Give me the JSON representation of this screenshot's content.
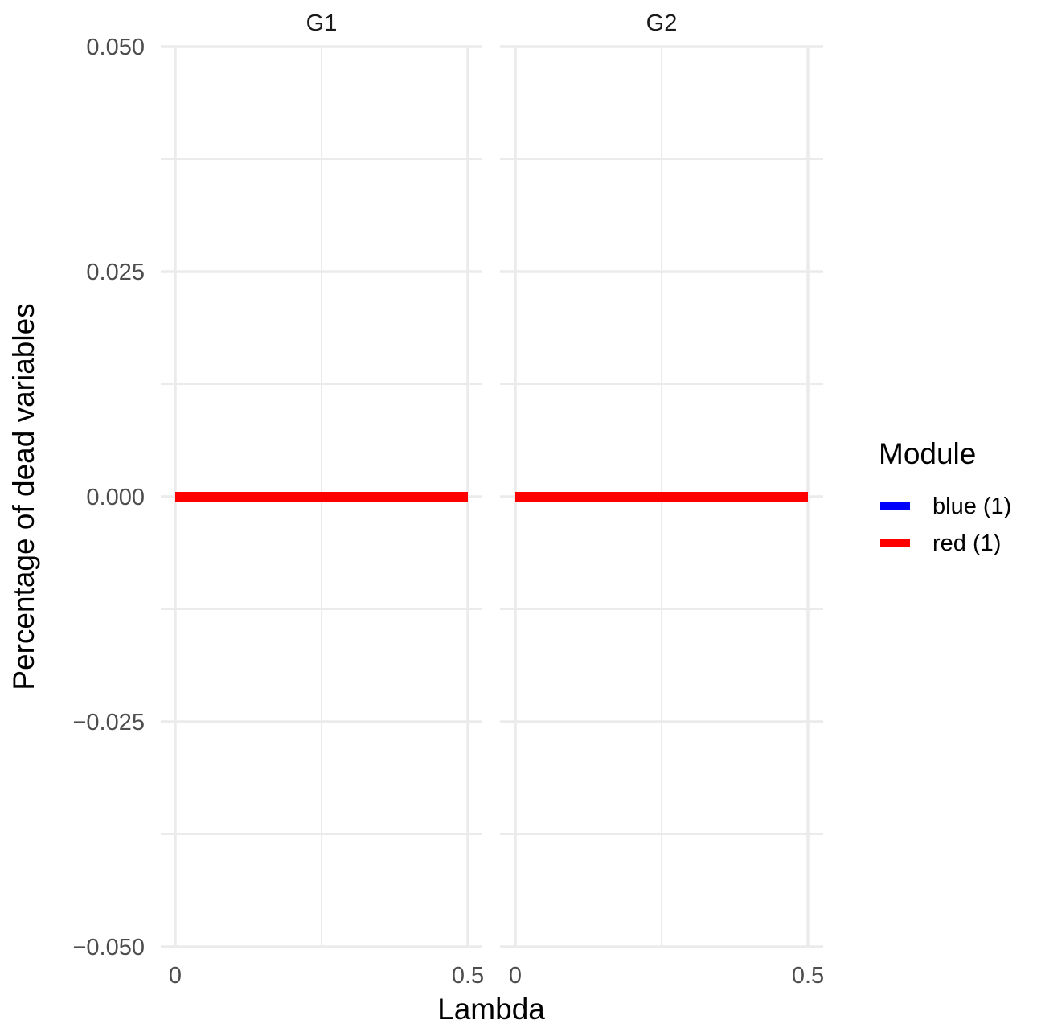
{
  "chart_data": {
    "type": "line",
    "facets": [
      "G1",
      "G2"
    ],
    "xlabel": "Lambda",
    "ylabel": "Percentage of dead variables",
    "xlim": [
      0,
      0.5
    ],
    "ylim": [
      -0.05,
      0.05
    ],
    "x_ticks": [
      0,
      0.5
    ],
    "x_tick_labels": [
      "0",
      "0.5"
    ],
    "y_ticks": [
      -0.05,
      -0.025,
      0,
      0.025,
      0.05
    ],
    "y_tick_labels": [
      "−0.050",
      "−0.025",
      "0.000",
      "0.025",
      "0.050"
    ],
    "grid": true,
    "legend": {
      "title": "Module",
      "placement": "right",
      "entries": [
        {
          "label": "blue (1)",
          "color": "#0000FF"
        },
        {
          "label": "red (1)",
          "color": "#FF0000"
        }
      ]
    },
    "series": [
      {
        "name": "blue (1)",
        "facet": "G1",
        "color": "#0000FF",
        "x": [
          0,
          0.5
        ],
        "y": [
          0,
          0
        ]
      },
      {
        "name": "red (1)",
        "facet": "G1",
        "color": "#FF0000",
        "x": [
          0,
          0.5
        ],
        "y": [
          0,
          0
        ]
      },
      {
        "name": "blue (1)",
        "facet": "G2",
        "color": "#0000FF",
        "x": [
          0,
          0.5
        ],
        "y": [
          0,
          0
        ]
      },
      {
        "name": "red (1)",
        "facet": "G2",
        "color": "#FF0000",
        "x": [
          0,
          0.5
        ],
        "y": [
          0,
          0
        ]
      }
    ]
  }
}
